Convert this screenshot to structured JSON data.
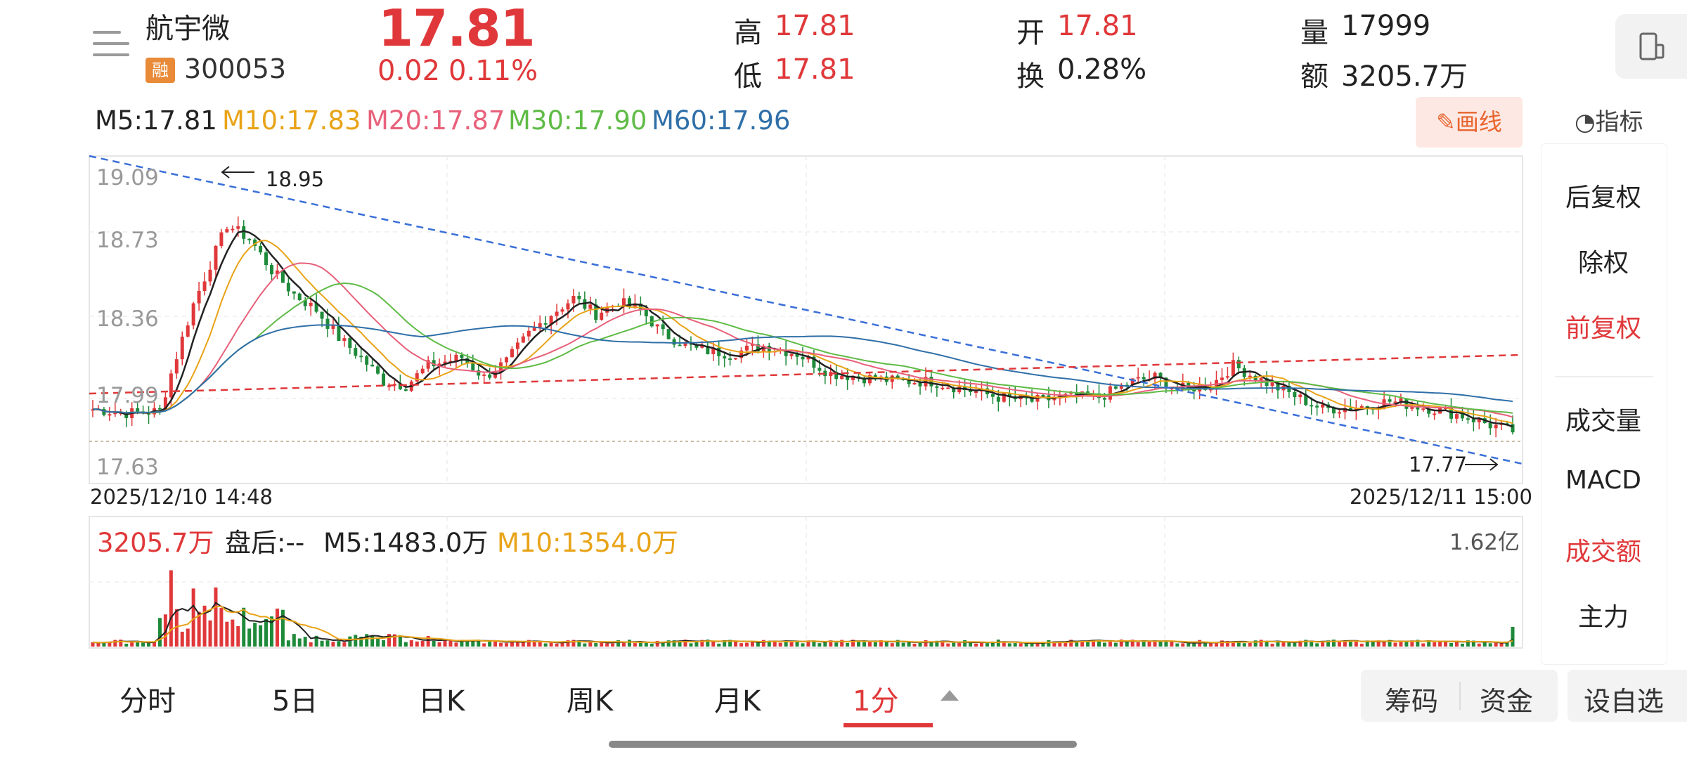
{
  "header": {
    "stock_name": "航宇微",
    "badge": "融",
    "stock_code": "300053",
    "price": "17.81",
    "change": "0.02",
    "change_pct": "0.11%",
    "high_label": "高",
    "high": "17.81",
    "low_label": "低",
    "low": "17.81",
    "open_label": "开",
    "open": "17.81",
    "turnover_label": "换",
    "turnover": "0.28%",
    "volume_label": "量",
    "volume": "17999",
    "amount_label": "额",
    "amount": "3205.7万"
  },
  "ma_bar": {
    "m5": "M5:17.81",
    "m10": "M10:17.83",
    "m20": "M20:17.87",
    "m30": "M30:17.90",
    "m60": "M60:17.96",
    "draw_button": "画线",
    "indicator": "指标"
  },
  "right_panel": {
    "items": [
      "后复权",
      "除权",
      "前复权",
      "成交量",
      "MACD",
      "成交额",
      "主力"
    ],
    "active": [
      "前复权",
      "成交额"
    ]
  },
  "price_chart": {
    "y_labels": [
      "19.09",
      "18.73",
      "18.36",
      "17.99",
      "17.63"
    ],
    "annotation_high": "18.95",
    "annotation_low": "17.77",
    "start_time": "2025/12/10 14:48",
    "end_time": "2025/12/11 15:00"
  },
  "volume_chart": {
    "amount": "3205.7万",
    "after_hours": "盘后:--",
    "m5": "M5:1483.0万",
    "m10": "M10:1354.0万",
    "max_label": "1.62亿"
  },
  "tabs": [
    "分时",
    "5日",
    "日K",
    "周K",
    "月K",
    "1分"
  ],
  "active_tab": "1分",
  "bottom_buttons": {
    "chips": "筹码",
    "funds": "资金",
    "favorite": "设自选"
  },
  "colors": {
    "up": "#e0383a",
    "down": "#1e8a3a",
    "m5": "#222222",
    "m10": "#e8a317",
    "m20": "#e8607a",
    "m30": "#5fbb46",
    "m60": "#2f6fa8",
    "trend_blue": "#3a6fd8",
    "trend_red": "#e0383a"
  }
}
